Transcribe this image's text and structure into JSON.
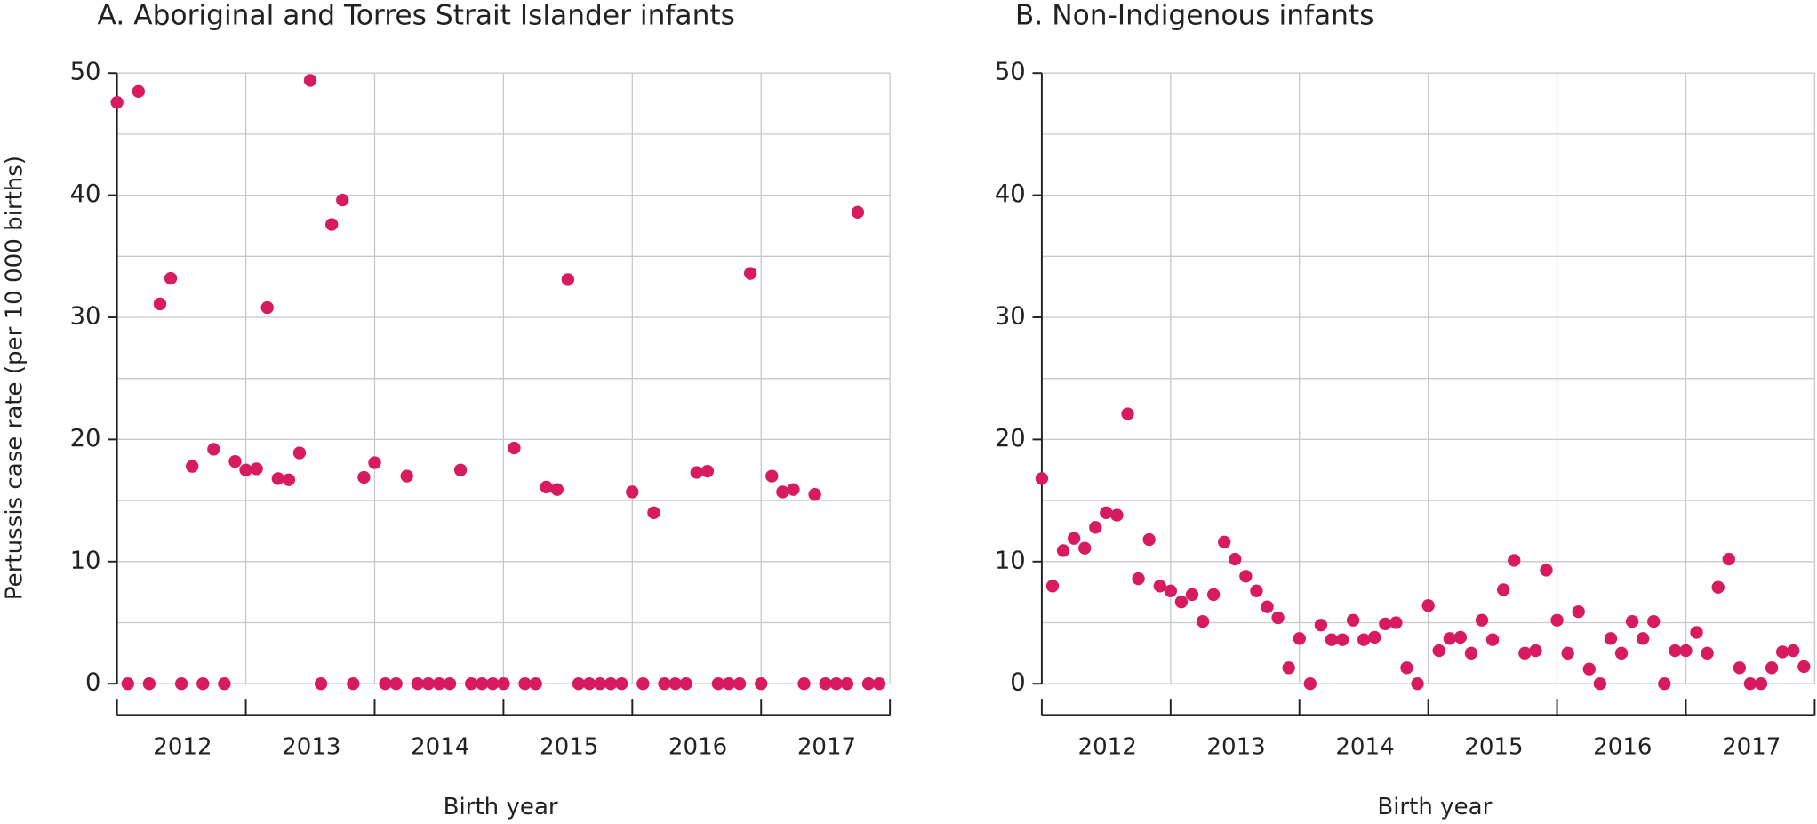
{
  "chart_data": [
    {
      "type": "scatter",
      "title": "A. Aboriginal and Torres Strait Islander infants",
      "y_label": "Pertussis case rate (per 10 000 births)",
      "x_label": "Birth year",
      "categories": [
        null,
        null,
        null,
        null,
        null,
        null,
        "2012",
        null,
        null,
        null,
        null,
        null,
        null,
        null,
        null,
        null,
        null,
        null,
        "2013",
        null,
        null,
        null,
        null,
        null,
        null,
        null,
        null,
        null,
        null,
        null,
        "2014",
        null,
        null,
        null,
        null,
        null,
        null,
        null,
        null,
        null,
        null,
        null,
        "2015",
        null,
        null,
        null,
        null,
        null,
        null,
        null,
        null,
        null,
        null,
        null,
        "2016",
        null,
        null,
        null,
        null,
        null,
        null,
        null,
        null,
        null,
        null,
        null,
        "2017",
        null,
        null,
        null,
        null,
        null
      ],
      "values": [
        47.6,
        0,
        48.5,
        0,
        31.1,
        33.2,
        0,
        17.8,
        0,
        19.2,
        0,
        18.2,
        17.5,
        17.6,
        30.8,
        16.8,
        16.7,
        18.9,
        49.4,
        0,
        37.6,
        39.6,
        0,
        16.9,
        18.1,
        0,
        0,
        17.0,
        0,
        0,
        0,
        0,
        17.5,
        0,
        0,
        0,
        0,
        19.3,
        0,
        0,
        16.1,
        15.9,
        33.1,
        0,
        0,
        0,
        0,
        0,
        15.7,
        0,
        14.0,
        0,
        0,
        0,
        17.3,
        17.4,
        0,
        0,
        0,
        33.6,
        0,
        17.0,
        15.7,
        15.9,
        0,
        15.5,
        0,
        0,
        0,
        38.6,
        0,
        0
      ],
      "color": "#d81b60",
      "ylim": [
        0,
        50
      ],
      "yticks": [
        0,
        10,
        20,
        30,
        40,
        50
      ],
      "grid": true
    },
    {
      "type": "scatter",
      "title": "B. Non-Indigenous infants",
      "x_label": "Birth year",
      "categories": [
        null,
        null,
        null,
        null,
        null,
        null,
        "2012",
        null,
        null,
        null,
        null,
        null,
        null,
        null,
        null,
        null,
        null,
        null,
        "2013",
        null,
        null,
        null,
        null,
        null,
        null,
        null,
        null,
        null,
        null,
        null,
        "2014",
        null,
        null,
        null,
        null,
        null,
        null,
        null,
        null,
        null,
        null,
        null,
        "2015",
        null,
        null,
        null,
        null,
        null,
        null,
        null,
        null,
        null,
        null,
        null,
        "2016",
        null,
        null,
        null,
        null,
        null,
        null,
        null,
        null,
        null,
        null,
        null,
        "2017",
        null,
        null,
        null,
        null,
        null
      ],
      "values": [
        16.8,
        8.0,
        10.9,
        11.9,
        11.1,
        12.8,
        14.0,
        13.8,
        22.1,
        8.6,
        11.8,
        8.0,
        7.6,
        6.7,
        7.3,
        5.1,
        7.3,
        11.6,
        10.2,
        8.8,
        7.6,
        6.3,
        5.4,
        1.3,
        3.7,
        0,
        4.8,
        3.6,
        3.6,
        5.2,
        3.6,
        3.8,
        4.9,
        5.0,
        1.3,
        0,
        6.4,
        2.7,
        3.7,
        3.8,
        2.5,
        5.2,
        3.6,
        7.7,
        10.1,
        2.5,
        2.7,
        9.3,
        5.2,
        2.5,
        5.9,
        1.2,
        0,
        3.7,
        2.5,
        5.1,
        3.7,
        5.1,
        0,
        2.7,
        2.7,
        4.2,
        2.5,
        7.9,
        10.2,
        1.3,
        0,
        0,
        1.3,
        2.6,
        2.7,
        1.4
      ],
      "color": "#d81b60",
      "ylim": [
        0,
        50
      ],
      "yticks": [
        0,
        10,
        20,
        30,
        40,
        50
      ],
      "grid": true
    }
  ]
}
